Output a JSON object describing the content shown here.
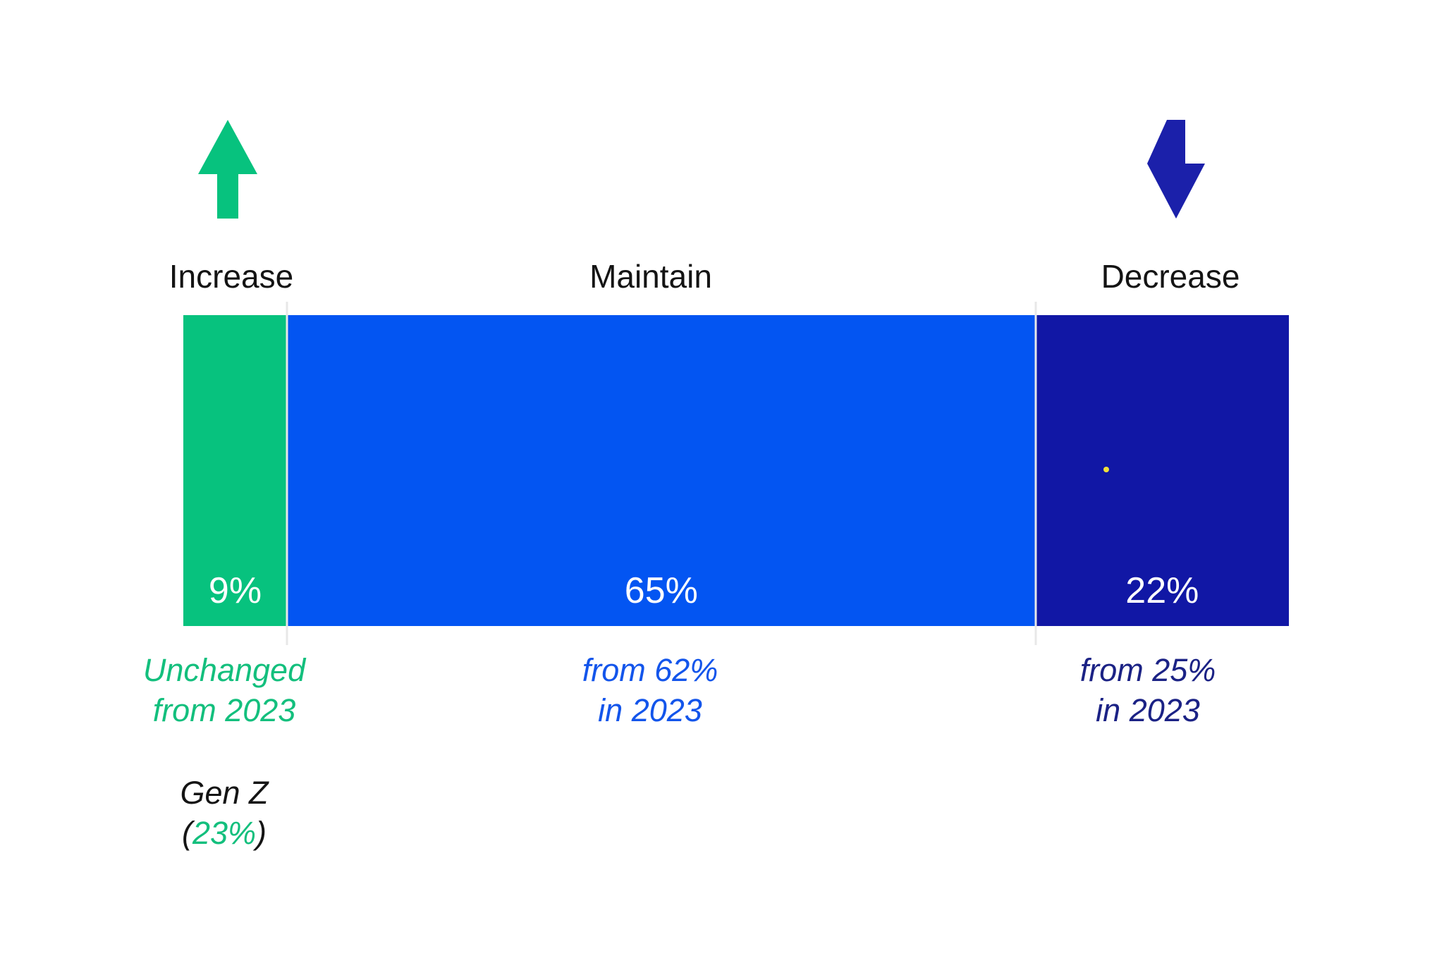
{
  "chart_data": {
    "type": "bar",
    "orientation": "horizontal-stacked",
    "categories": [
      "Increase",
      "Maintain",
      "Decrease"
    ],
    "values": [
      9,
      65,
      22
    ],
    "category_label_color": "#141414",
    "value_label_color": "#ffffff",
    "divider_color": "#e8e8e8",
    "marker_dot_color": "#f0e03a",
    "segments": [
      {
        "label": "Increase",
        "value": 9,
        "value_label": "9%",
        "bar_color": "#07c27e",
        "arrow": "up",
        "arrow_color": "#07c27e",
        "annotation": {
          "line1": "Unchanged",
          "line2": "from 2023",
          "color": "#13bf7d"
        }
      },
      {
        "label": "Maintain",
        "value": 65,
        "value_label": "65%",
        "bar_color": "#0355f2",
        "arrow": "none",
        "arrow_color": "",
        "annotation": {
          "line1": "from 62%",
          "line2": "in 2023",
          "color": "#1355eb"
        }
      },
      {
        "label": "Decrease",
        "value": 22,
        "value_label": "22%",
        "bar_color": "#1117a5",
        "arrow": "down",
        "arrow_color": "#1b20aa",
        "annotation": {
          "line1": "from 25%",
          "line2": "in 2023",
          "color": "#1b2285"
        }
      }
    ],
    "footnote": {
      "prefix": "Gen Z",
      "open_paren": "(",
      "value": "23%",
      "close_paren": ")",
      "text_color": "#141414",
      "value_color": "#13bf7d"
    }
  }
}
